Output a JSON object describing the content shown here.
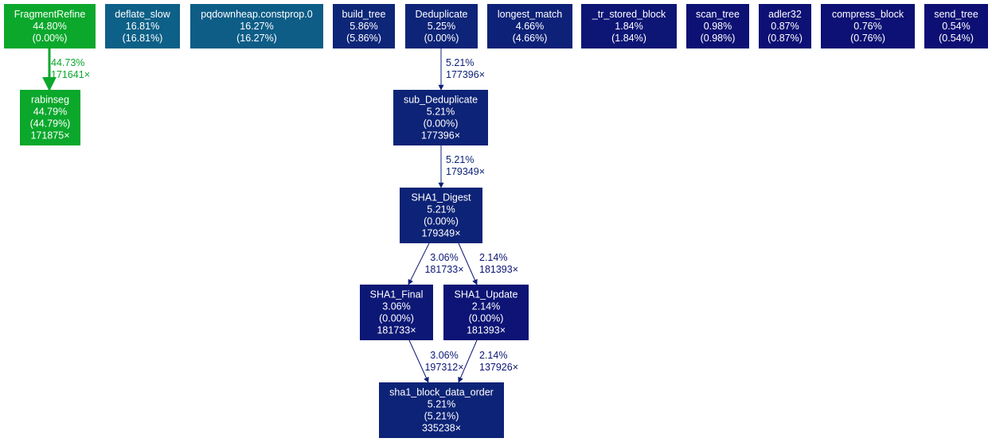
{
  "nodes": [
    {
      "id": "FragmentRefine",
      "lines": [
        "FragmentRefine",
        "44.80%",
        "(0.00%)"
      ],
      "color": "#0ba82c"
    },
    {
      "id": "deflate_slow",
      "lines": [
        "deflate_slow",
        "16.81%",
        "(16.81%)"
      ],
      "color": "#0d6087"
    },
    {
      "id": "pqdownheap",
      "lines": [
        "pqdownheap.constprop.0",
        "16.27%",
        "(16.27%)"
      ],
      "color": "#0d5d87"
    },
    {
      "id": "build_tree",
      "lines": [
        "build_tree",
        "5.86%",
        "(5.86%)"
      ],
      "color": "#0d2677"
    },
    {
      "id": "Deduplicate",
      "lines": [
        "Deduplicate",
        "5.25%",
        "(0.00%)"
      ],
      "color": "#0d2478"
    },
    {
      "id": "longest_match",
      "lines": [
        "longest_match",
        "4.66%",
        "(4.66%)"
      ],
      "color": "#0d2178"
    },
    {
      "id": "tr_stored_block",
      "lines": [
        "_tr_stored_block",
        "1.84%",
        "(1.84%)"
      ],
      "color": "#0d1575"
    },
    {
      "id": "scan_tree",
      "lines": [
        "scan_tree",
        "0.98%",
        "(0.98%)"
      ],
      "color": "#0d1174"
    },
    {
      "id": "adler32",
      "lines": [
        "adler32",
        "0.87%",
        "(0.87%)"
      ],
      "color": "#0d1074"
    },
    {
      "id": "compress_block",
      "lines": [
        "compress_block",
        "0.76%",
        "(0.76%)"
      ],
      "color": "#0d1074"
    },
    {
      "id": "send_tree",
      "lines": [
        "send_tree",
        "0.54%",
        "(0.54%)"
      ],
      "color": "#0d0f74"
    },
    {
      "id": "rabinseg",
      "lines": [
        "rabinseg",
        "44.79%",
        "(44.79%)",
        "171875×"
      ],
      "color": "#0ba82c"
    },
    {
      "id": "sub_Deduplicate",
      "lines": [
        "sub_Deduplicate",
        "5.21%",
        "(0.00%)",
        "177396×"
      ],
      "color": "#0d2377"
    },
    {
      "id": "SHA1_Digest",
      "lines": [
        "SHA1_Digest",
        "5.21%",
        "(0.00%)",
        "179349×"
      ],
      "color": "#0d2377"
    },
    {
      "id": "SHA1_Final",
      "lines": [
        "SHA1_Final",
        "3.06%",
        "(0.00%)",
        "181733×"
      ],
      "color": "#0d1876"
    },
    {
      "id": "SHA1_Update",
      "lines": [
        "SHA1_Update",
        "2.14%",
        "(0.00%)",
        "181393×"
      ],
      "color": "#0d1475"
    },
    {
      "id": "sha1_block_data_order",
      "lines": [
        "sha1_block_data_order",
        "5.21%",
        "(5.21%)",
        "335238×"
      ],
      "color": "#0d2377"
    }
  ],
  "edges": [
    {
      "from": "FragmentRefine",
      "to": "rabinseg",
      "lines": [
        "44.73%",
        "171641×"
      ],
      "color": "#0ba82c"
    },
    {
      "from": "Deduplicate",
      "to": "sub_Deduplicate",
      "lines": [
        "5.21%",
        "177396×"
      ],
      "color": "#0d2377"
    },
    {
      "from": "sub_Deduplicate",
      "to": "SHA1_Digest",
      "lines": [
        "5.21%",
        "179349×"
      ],
      "color": "#0d2377"
    },
    {
      "from": "SHA1_Digest",
      "to": "SHA1_Final",
      "lines": [
        "3.06%",
        "181733×"
      ],
      "color": "#0d1876"
    },
    {
      "from": "SHA1_Digest",
      "to": "SHA1_Update",
      "lines": [
        "2.14%",
        "181393×"
      ],
      "color": "#0d1475"
    },
    {
      "from": "SHA1_Final",
      "to": "sha1_block_data_order",
      "lines": [
        "3.06%",
        "197312×"
      ],
      "color": "#0d1876"
    },
    {
      "from": "SHA1_Update",
      "to": "sha1_block_data_order",
      "lines": [
        "2.14%",
        "137926×"
      ],
      "color": "#0d1475"
    }
  ]
}
